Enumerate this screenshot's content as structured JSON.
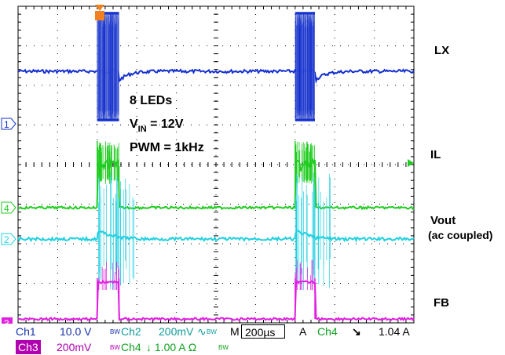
{
  "chart_data": {
    "type": "line",
    "title": "",
    "xlabel": "",
    "ylabel": "",
    "grid": true,
    "x_divisions": 10,
    "y_divisions": 8,
    "annotations": {
      "line1": "8 LEDs",
      "line2_main": "V",
      "line2_sub": "IN",
      "line2_rest": " = 12V",
      "line3": "PWM = 1kHz"
    },
    "series": [
      {
        "name": "LX",
        "label": "LX",
        "color": "#1530d0"
      },
      {
        "name": "IL",
        "label": "IL",
        "color": "#22cc22"
      },
      {
        "name": "Vout",
        "label": "Vout",
        "label2": "(ac coupled)",
        "color": "#22d0e0"
      },
      {
        "name": "FB",
        "label": "FB",
        "color": "#e020e0"
      }
    ],
    "pulse_windows": [
      [
        2.0,
        2.55
      ],
      [
        7.0,
        7.5
      ]
    ],
    "markers": {
      "ch1": "1",
      "ch2": "2",
      "ch3": "3",
      "ch4": "4"
    }
  },
  "status": {
    "ch1_label": "Ch1",
    "ch1_scale": "10.0 V",
    "bw1": "BW",
    "ch2_label": "Ch2",
    "ch2_scale": "200mV",
    "ac_symbol": "∿",
    "bw2": "BW",
    "timebase_label": "M",
    "timebase": "200µs",
    "trig_mode": "A",
    "trig_source": "Ch4",
    "trig_slope": "↘",
    "trig_level": "1.04 A",
    "ch3_label": "Ch3",
    "ch3_scale": "200mV",
    "bw3": "BW",
    "ch4_label": "Ch4",
    "ch4_scale": "↓ 1.00 A Ω",
    "bw4": "BW"
  },
  "colors": {
    "ch1": "#1530d0",
    "ch2": "#22d0e0",
    "ch3": "#e020e0",
    "ch4": "#22cc22",
    "trigger": "#f08020",
    "grid": "#000000"
  }
}
